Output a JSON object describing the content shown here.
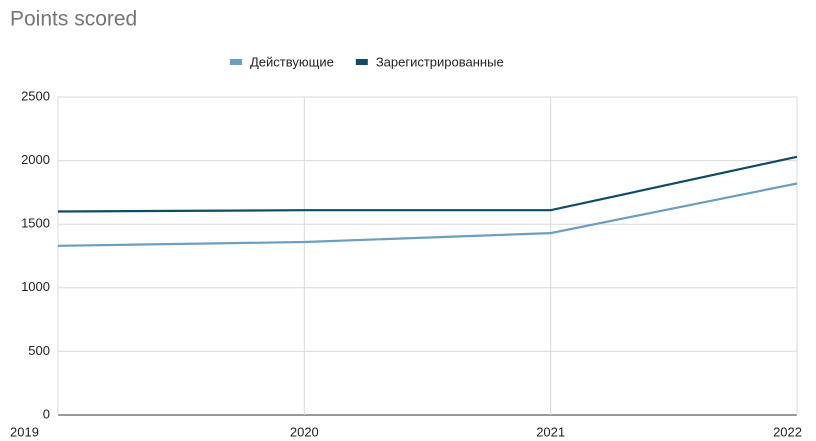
{
  "chart_data": {
    "type": "line",
    "title": "Points scored",
    "x": [
      2019,
      2020,
      2021,
      2022
    ],
    "xlim": [
      2019,
      2022
    ],
    "xticks": [
      2019,
      2020,
      2021,
      2022
    ],
    "ylim": [
      0,
      2500
    ],
    "yticks": [
      0,
      500,
      1000,
      1500,
      2000,
      2500
    ],
    "grid": true,
    "legend": "top",
    "series": [
      {
        "name": "Действующие",
        "color": "#6a9fbf",
        "values": [
          1330,
          1360,
          1430,
          1820
        ]
      },
      {
        "name": "Зарегистрированные",
        "color": "#0f4c64",
        "values": [
          1600,
          1610,
          1610,
          2030
        ]
      }
    ]
  }
}
